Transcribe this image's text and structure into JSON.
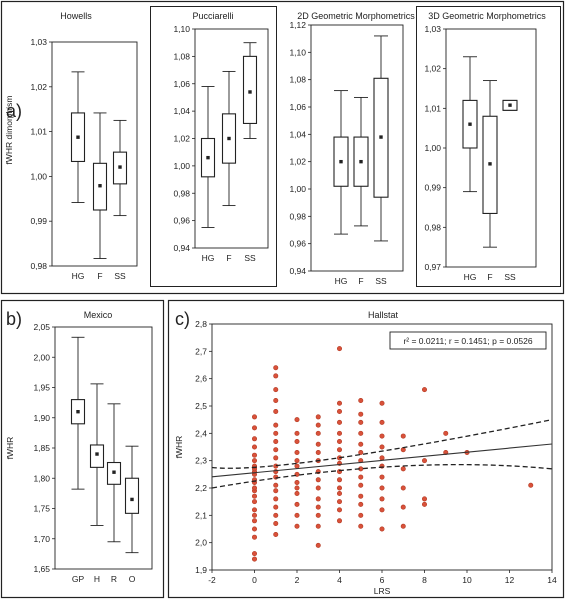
{
  "panels": {
    "a_label": "a)",
    "b_label": "b)",
    "c_label": "c)"
  },
  "colors": {
    "scatter_point": "#d9513a",
    "frame": "#222222"
  },
  "chart_data": [
    {
      "type": "box",
      "id": "howells",
      "title": "Howells",
      "ylabel": "fWHR dimorphism",
      "ylim": [
        0.98,
        1.04
      ],
      "yticks": [
        "0,98",
        "0,99",
        "1,00",
        "1,01",
        "1,02",
        "1,03"
      ],
      "categories": [
        "HG",
        "F",
        "SS"
      ],
      "boxes": [
        {
          "min": 0.997,
          "q1": 1.008,
          "median": 1.0145,
          "q3": 1.021,
          "max": 1.032
        },
        {
          "min": 0.982,
          "q1": 0.995,
          "median": 1.0015,
          "q3": 1.0075,
          "max": 1.021
        },
        {
          "min": 0.9935,
          "q1": 1.002,
          "median": 1.0065,
          "q3": 1.0105,
          "max": 1.019
        }
      ]
    },
    {
      "type": "box",
      "id": "pucciarelli",
      "title": "Pucciarelli",
      "ylabel": "",
      "ylim": [
        0.94,
        1.1
      ],
      "yticks": [
        "0,94",
        "0,96",
        "0,98",
        "1,00",
        "1,02",
        "1,04",
        "1,06",
        "1,08",
        "1,10"
      ],
      "categories": [
        "HG",
        "F",
        "SS"
      ],
      "boxes": [
        {
          "min": 0.955,
          "q1": 0.992,
          "median": 1.006,
          "q3": 1.02,
          "max": 1.058
        },
        {
          "min": 0.971,
          "q1": 1.002,
          "median": 1.02,
          "q3": 1.038,
          "max": 1.069
        },
        {
          "min": 1.02,
          "q1": 1.031,
          "median": 1.054,
          "q3": 1.08,
          "max": 1.09
        }
      ]
    },
    {
      "type": "box",
      "id": "geo2d",
      "title": "2D Geometric Morphometrics",
      "ylabel": "",
      "ylim": [
        0.94,
        1.12
      ],
      "yticks": [
        "0,94",
        "0,96",
        "0,98",
        "1,00",
        "1,02",
        "1,04",
        "1,06",
        "1,08",
        "1,10",
        "1,12"
      ],
      "categories": [
        "HG",
        "F",
        "SS"
      ],
      "boxes": [
        {
          "min": 0.967,
          "q1": 1.002,
          "median": 1.02,
          "q3": 1.038,
          "max": 1.072
        },
        {
          "min": 0.973,
          "q1": 1.002,
          "median": 1.02,
          "q3": 1.038,
          "max": 1.067
        },
        {
          "min": 0.962,
          "q1": 0.994,
          "median": 1.038,
          "q3": 1.081,
          "max": 1.112
        }
      ]
    },
    {
      "type": "box",
      "id": "geo3d",
      "title": "3D Geometric Morphometrics",
      "ylabel": "",
      "ylim": [
        0.97,
        1.03
      ],
      "yticks": [
        "0,97",
        "0,98",
        "0,99",
        "1,00",
        "1,01",
        "1,02",
        "1,03"
      ],
      "categories": [
        "HG",
        "F",
        "SS"
      ],
      "boxes": [
        {
          "min": 0.989,
          "q1": 1.0,
          "median": 1.006,
          "q3": 1.012,
          "max": 1.023
        },
        {
          "min": 0.975,
          "q1": 0.9835,
          "median": 0.996,
          "q3": 1.008,
          "max": 1.017
        },
        {
          "min": 1.0095,
          "q1": 1.0095,
          "median": 1.0108,
          "q3": 1.012,
          "max": 1.012
        }
      ]
    },
    {
      "type": "box",
      "id": "mexico",
      "title": "Mexico",
      "ylabel": "fWHR",
      "ylim": [
        1.65,
        2.05
      ],
      "yticks": [
        "1,65",
        "1,70",
        "1,75",
        "1,80",
        "1,85",
        "1,90",
        "1,95",
        "2,00",
        "2,05"
      ],
      "categories": [
        "GP",
        "H",
        "R",
        "O"
      ],
      "boxes": [
        {
          "min": 1.782,
          "q1": 1.89,
          "median": 1.91,
          "q3": 1.93,
          "max": 2.033
        },
        {
          "min": 1.722,
          "q1": 1.818,
          "median": 1.84,
          "q3": 1.855,
          "max": 1.956
        },
        {
          "min": 1.695,
          "q1": 1.79,
          "median": 1.81,
          "q3": 1.826,
          "max": 1.923
        },
        {
          "min": 1.677,
          "q1": 1.742,
          "median": 1.765,
          "q3": 1.8,
          "max": 1.853
        }
      ]
    },
    {
      "type": "scatter",
      "id": "hallstat",
      "title": "Hallstat",
      "xlabel": "LRS",
      "ylabel": "fWHR",
      "xlim": [
        -2,
        14
      ],
      "ylim": [
        1.9,
        2.8
      ],
      "xticks": [
        "-2",
        "0",
        "2",
        "4",
        "6",
        "8",
        "10",
        "12",
        "14"
      ],
      "yticks": [
        "1,9",
        "2,0",
        "2,1",
        "2,2",
        "2,3",
        "2,4",
        "2,5",
        "2,6",
        "2,7",
        "2,8"
      ],
      "annotation": "r² = 0.0211;  r = 0.1451;  p = 0.0526",
      "fit": {
        "intercept": 2.256,
        "slope": 0.0075
      },
      "ci_upper": {
        "y_at_xmin": 2.275,
        "y_at_xmax": 2.45,
        "y_min": 2.28,
        "x_at_min": 1.2
      },
      "ci_lower": {
        "y_at_xmin": 2.2,
        "y_at_xmax": 2.27,
        "y_max": 2.272,
        "x_at_max": 7.0
      },
      "points": [
        [
          0,
          1.94
        ],
        [
          0,
          1.96
        ],
        [
          0,
          2.02
        ],
        [
          0,
          2.05
        ],
        [
          0,
          2.08
        ],
        [
          0,
          2.1
        ],
        [
          0,
          2.12
        ],
        [
          0,
          2.15
        ],
        [
          0,
          2.17
        ],
        [
          0,
          2.19
        ],
        [
          0,
          2.2
        ],
        [
          0,
          2.22
        ],
        [
          0,
          2.23
        ],
        [
          0,
          2.25
        ],
        [
          0,
          2.26
        ],
        [
          0,
          2.27
        ],
        [
          0,
          2.28
        ],
        [
          0,
          2.3
        ],
        [
          0,
          2.32
        ],
        [
          0,
          2.35
        ],
        [
          0,
          2.38
        ],
        [
          0,
          2.42
        ],
        [
          0,
          2.46
        ],
        [
          1,
          2.03
        ],
        [
          1,
          2.07
        ],
        [
          1,
          2.1
        ],
        [
          1,
          2.13
        ],
        [
          1,
          2.16
        ],
        [
          1,
          2.19
        ],
        [
          1,
          2.21
        ],
        [
          1,
          2.24
        ],
        [
          1,
          2.26
        ],
        [
          1,
          2.28
        ],
        [
          1,
          2.31
        ],
        [
          1,
          2.34
        ],
        [
          1,
          2.37
        ],
        [
          1,
          2.4
        ],
        [
          1,
          2.43
        ],
        [
          1,
          2.48
        ],
        [
          1,
          2.52
        ],
        [
          1,
          2.56
        ],
        [
          1,
          2.61
        ],
        [
          1,
          2.64
        ],
        [
          2,
          2.06
        ],
        [
          2,
          2.1
        ],
        [
          2,
          2.14
        ],
        [
          2,
          2.18
        ],
        [
          2,
          2.2
        ],
        [
          2,
          2.22
        ],
        [
          2,
          2.25
        ],
        [
          2,
          2.28
        ],
        [
          2,
          2.3
        ],
        [
          2,
          2.33
        ],
        [
          2,
          2.37
        ],
        [
          2,
          2.4
        ],
        [
          2,
          2.45
        ],
        [
          3,
          1.99
        ],
        [
          3,
          2.06
        ],
        [
          3,
          2.1
        ],
        [
          3,
          2.13
        ],
        [
          3,
          2.16
        ],
        [
          3,
          2.2
        ],
        [
          3,
          2.23
        ],
        [
          3,
          2.26
        ],
        [
          3,
          2.3
        ],
        [
          3,
          2.33
        ],
        [
          3,
          2.36
        ],
        [
          3,
          2.4
        ],
        [
          3,
          2.43
        ],
        [
          3,
          2.46
        ],
        [
          4,
          2.08
        ],
        [
          4,
          2.12
        ],
        [
          4,
          2.15
        ],
        [
          4,
          2.18
        ],
        [
          4,
          2.2
        ],
        [
          4,
          2.23
        ],
        [
          4,
          2.26
        ],
        [
          4,
          2.29
        ],
        [
          4,
          2.31
        ],
        [
          4,
          2.34
        ],
        [
          4,
          2.37
        ],
        [
          4,
          2.4
        ],
        [
          4,
          2.44
        ],
        [
          4,
          2.48
        ],
        [
          4,
          2.51
        ],
        [
          4,
          2.71
        ],
        [
          5,
          2.06
        ],
        [
          5,
          2.1
        ],
        [
          5,
          2.14
        ],
        [
          5,
          2.17
        ],
        [
          5,
          2.21
        ],
        [
          5,
          2.24
        ],
        [
          5,
          2.27
        ],
        [
          5,
          2.3
        ],
        [
          5,
          2.33
        ],
        [
          5,
          2.36
        ],
        [
          5,
          2.4
        ],
        [
          5,
          2.44
        ],
        [
          5,
          2.47
        ],
        [
          5,
          2.52
        ],
        [
          6,
          2.05
        ],
        [
          6,
          2.12
        ],
        [
          6,
          2.16
        ],
        [
          6,
          2.2
        ],
        [
          6,
          2.24
        ],
        [
          6,
          2.28
        ],
        [
          6,
          2.31
        ],
        [
          6,
          2.35
        ],
        [
          6,
          2.39
        ],
        [
          6,
          2.44
        ],
        [
          6,
          2.51
        ],
        [
          7,
          2.06
        ],
        [
          7,
          2.13
        ],
        [
          7,
          2.2
        ],
        [
          7,
          2.27
        ],
        [
          7,
          2.34
        ],
        [
          7,
          2.39
        ],
        [
          8,
          2.14
        ],
        [
          8,
          2.16
        ],
        [
          8,
          2.3
        ],
        [
          8,
          2.56
        ],
        [
          9,
          2.33
        ],
        [
          9,
          2.4
        ],
        [
          10,
          2.33
        ],
        [
          13,
          2.21
        ]
      ]
    }
  ]
}
